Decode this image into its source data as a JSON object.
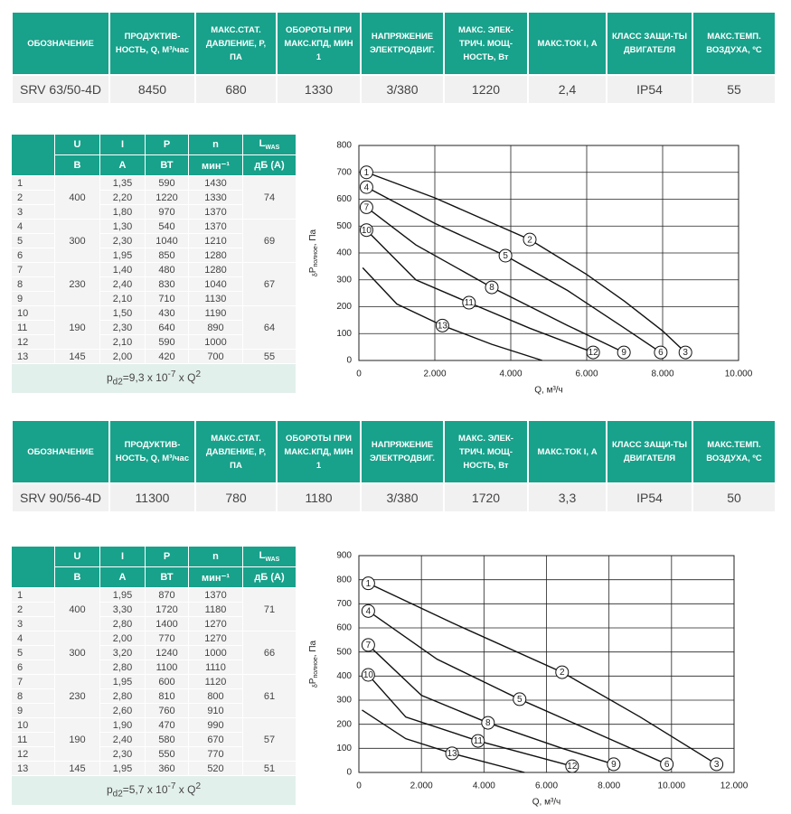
{
  "spec_tables": [
    {
      "headers": [
        "ОБОЗНАЧЕНИЕ",
        "ПРОДУКТИВ-НОСТЬ, Q, М³/час",
        "МАКС.СТАТ. ДАВЛЕНИЕ, Р, ПА",
        "ОБОРОТЫ ПРИ МАКС.КПД, МИН 1",
        "НАПРЯЖЕНИЕ ЭЛЕКТРОДВИГ.",
        "МАКС. ЭЛЕК-ТРИЧ. МОЩ-НОСТЬ, Вт",
        "МАКС.ТОК I, А",
        "КЛАСС ЗАЩИ-ТЫ ДВИГАТЕЛЯ",
        "МАКС.ТЕМП. ВОЗДУХА, ºC"
      ],
      "row": [
        "SRV 63/50-4D",
        "8450",
        "680",
        "1330",
        "3/380",
        "1220",
        "2,4",
        "IP54",
        "55"
      ]
    },
    {
      "headers": [
        "ОБОЗНАЧЕНИЕ",
        "ПРОДУКТИВ-НОСТЬ, Q, М³/час",
        "МАКС.СТАТ. ДАВЛЕНИЕ, Р, ПА",
        "ОБОРОТЫ ПРИ МАКС.КПД, МИН 1",
        "НАПРЯЖЕНИЕ ЭЛЕКТРОДВИГ.",
        "МАКС. ЭЛЕК-ТРИЧ. МОЩ-НОСТЬ, Вт",
        "МАКС.ТОК I, А",
        "КЛАСС ЗАЩИ-ТЫ ДВИГАТЕЛЯ",
        "МАКС.ТЕМП. ВОЗДУХА, ºC"
      ],
      "row": [
        "SRV 90/56-4D",
        "11300",
        "780",
        "1180",
        "3/380",
        "1720",
        "3,3",
        "IP54",
        "50"
      ]
    }
  ],
  "electrical_tables": [
    {
      "header_top": [
        "U",
        "I",
        "P",
        "n",
        "L"
      ],
      "header_top_sub": "WAS",
      "header_units": [
        "В",
        "А",
        "ВТ",
        "мин⁻¹",
        "дБ (А)"
      ],
      "rows": [
        [
          "1",
          "1,35",
          "590",
          "1430"
        ],
        [
          "2",
          "2,20",
          "1220",
          "1330"
        ],
        [
          "3",
          "1,80",
          "970",
          "1370"
        ],
        [
          "4",
          "1,30",
          "540",
          "1370"
        ],
        [
          "5",
          "2,30",
          "1040",
          "1210"
        ],
        [
          "6",
          "1,95",
          "850",
          "1280"
        ],
        [
          "7",
          "1,40",
          "480",
          "1280"
        ],
        [
          "8",
          "2,40",
          "830",
          "1040"
        ],
        [
          "9",
          "2,10",
          "710",
          "1130"
        ],
        [
          "10",
          "1,50",
          "430",
          "1190"
        ],
        [
          "11",
          "2,30",
          "640",
          "890"
        ],
        [
          "12",
          "2,10",
          "590",
          "1000"
        ],
        [
          "13",
          "2,00",
          "420",
          "700"
        ]
      ],
      "groups": [
        [
          "400",
          "74"
        ],
        [
          "300",
          "69"
        ],
        [
          "230",
          "67"
        ],
        [
          "190",
          "64"
        ],
        [
          "145",
          "55"
        ]
      ],
      "formula": {
        "main": "p",
        "sub": "d2",
        "text": "=9,3 x 10",
        "exp": "-7",
        "text2": " x Q",
        "exp2": "2"
      }
    },
    {
      "header_top": [
        "U",
        "I",
        "P",
        "n",
        "L"
      ],
      "header_top_sub": "WAS",
      "header_units": [
        "В",
        "А",
        "ВТ",
        "мин⁻¹",
        "дБ (А)"
      ],
      "rows": [
        [
          "1",
          "1,95",
          "870",
          "1370"
        ],
        [
          "2",
          "3,30",
          "1720",
          "1180"
        ],
        [
          "3",
          "2,80",
          "1400",
          "1270"
        ],
        [
          "4",
          "2,00",
          "770",
          "1270"
        ],
        [
          "5",
          "3,20",
          "1240",
          "1000"
        ],
        [
          "6",
          "2,80",
          "1100",
          "1110"
        ],
        [
          "7",
          "1,95",
          "600",
          "1120"
        ],
        [
          "8",
          "2,80",
          "810",
          "800"
        ],
        [
          "9",
          "2,60",
          "760",
          "910"
        ],
        [
          "10",
          "1,90",
          "470",
          "990"
        ],
        [
          "11",
          "2,40",
          "580",
          "670"
        ],
        [
          "12",
          "2,30",
          "550",
          "770"
        ],
        [
          "13",
          "1,95",
          "360",
          "520"
        ]
      ],
      "groups": [
        [
          "400",
          "71"
        ],
        [
          "300",
          "66"
        ],
        [
          "230",
          "61"
        ],
        [
          "190",
          "57"
        ],
        [
          "145",
          "51"
        ]
      ],
      "formula": {
        "main": "p",
        "sub": "d2",
        "text": "=5,7 x 10",
        "exp": "-7",
        "text2": " x Q",
        "exp2": "2"
      }
    }
  ],
  "charts": [
    {
      "type": "line",
      "xlim": [
        0,
        10000
      ],
      "ylim": [
        0,
        800
      ],
      "xticks": [
        0,
        {
          "value": 2000,
          "label": "2.000"
        },
        {
          "value": 4000,
          "label": "4.000"
        },
        {
          "value": 6000,
          "label": "6.000"
        },
        {
          "value": 8000,
          "label": "8.000"
        },
        {
          "value": 10000,
          "label": "10.000"
        }
      ],
      "yticks": [
        0,
        100,
        200,
        300,
        400,
        500,
        600,
        700,
        800
      ],
      "grid": true,
      "x_label": "Q, м³/ч",
      "y_label": {
        "pre": "δ",
        "main": "P",
        "sub": "полное",
        "post": ", Па"
      },
      "curves": [
        {
          "x": [
            200,
            2000,
            4500,
            6000,
            7000,
            8000,
            8600
          ],
          "y": [
            700,
            605,
            450,
            320,
            220,
            110,
            30
          ]
        },
        {
          "x": [
            200,
            2000,
            3860,
            5500,
            7000,
            7950
          ],
          "y": [
            645,
            510,
            390,
            260,
            120,
            30
          ]
        },
        {
          "x": [
            200,
            1500,
            3500,
            5500,
            6980
          ],
          "y": [
            570,
            430,
            272,
            130,
            30
          ]
        },
        {
          "x": [
            200,
            1500,
            2900,
            4500,
            6170
          ],
          "y": [
            485,
            300,
            215,
            120,
            30
          ]
        },
        {
          "x": [
            100,
            1000,
            2200,
            3500,
            4830
          ],
          "y": [
            345,
            210,
            130,
            60,
            0
          ]
        }
      ],
      "markers": [
        {
          "label": "1",
          "x": 200,
          "y": 700
        },
        {
          "label": "2",
          "x": 4500,
          "y": 450
        },
        {
          "label": "3",
          "x": 8600,
          "y": 30
        },
        {
          "label": "4",
          "x": 200,
          "y": 645
        },
        {
          "label": "5",
          "x": 3860,
          "y": 390
        },
        {
          "label": "6",
          "x": 7950,
          "y": 30
        },
        {
          "label": "7",
          "x": 200,
          "y": 570
        },
        {
          "label": "8",
          "x": 3500,
          "y": 272
        },
        {
          "label": "9",
          "x": 6980,
          "y": 30
        },
        {
          "label": "10",
          "x": 200,
          "y": 485
        },
        {
          "label": "11",
          "x": 2900,
          "y": 215
        },
        {
          "label": "12",
          "x": 6170,
          "y": 30
        },
        {
          "label": "13",
          "x": 2200,
          "y": 130
        }
      ]
    },
    {
      "type": "line",
      "xlim": [
        0,
        12000
      ],
      "ylim": [
        0,
        900
      ],
      "xticks": [
        0,
        {
          "value": 2000,
          "label": "2.000"
        },
        {
          "value": 4000,
          "label": "4.000"
        },
        {
          "value": 6000,
          "label": "6.000"
        },
        {
          "value": 8000,
          "label": "8.000"
        },
        {
          "value": 10000,
          "label": "10.000"
        },
        {
          "value": 12000,
          "label": "12.000"
        }
      ],
      "yticks": [
        0,
        100,
        200,
        300,
        400,
        500,
        600,
        700,
        800,
        900
      ],
      "grid": true,
      "x_label": "Q, м³/ч",
      "y_label": {
        "pre": "δ",
        "main": "P",
        "sub": "полное",
        "post": ", Па"
      },
      "curves": [
        {
          "x": [
            300,
            3000,
            6500,
            9000,
            11440
          ],
          "y": [
            785,
            620,
            416,
            230,
            34
          ]
        },
        {
          "x": [
            300,
            2500,
            5140,
            8000,
            9850
          ],
          "y": [
            670,
            470,
            304,
            140,
            34
          ]
        },
        {
          "x": [
            300,
            2000,
            4130,
            6500,
            8150
          ],
          "y": [
            529,
            320,
            206,
            100,
            34
          ]
        },
        {
          "x": [
            300,
            1500,
            3810,
            6820
          ],
          "y": [
            405,
            230,
            131,
            26
          ]
        },
        {
          "x": [
            100,
            1500,
            2980,
            5300
          ],
          "y": [
            259,
            140,
            79,
            0
          ]
        }
      ],
      "markers": [
        {
          "label": "1",
          "x": 300,
          "y": 785
        },
        {
          "label": "2",
          "x": 6500,
          "y": 416
        },
        {
          "label": "3",
          "x": 11440,
          "y": 34
        },
        {
          "label": "4",
          "x": 300,
          "y": 670
        },
        {
          "label": "5",
          "x": 5140,
          "y": 304
        },
        {
          "label": "6",
          "x": 9850,
          "y": 34
        },
        {
          "label": "7",
          "x": 300,
          "y": 529
        },
        {
          "label": "8",
          "x": 4130,
          "y": 206
        },
        {
          "label": "9",
          "x": 8150,
          "y": 34
        },
        {
          "label": "10",
          "x": 300,
          "y": 405
        },
        {
          "label": "11",
          "x": 3810,
          "y": 131
        },
        {
          "label": "12",
          "x": 6820,
          "y": 26
        },
        {
          "label": "13",
          "x": 2980,
          "y": 79
        }
      ]
    }
  ]
}
